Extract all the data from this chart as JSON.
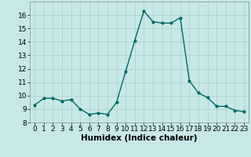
{
  "x": [
    0,
    1,
    2,
    3,
    4,
    5,
    6,
    7,
    8,
    9,
    10,
    11,
    12,
    13,
    14,
    15,
    16,
    17,
    18,
    19,
    20,
    21,
    22,
    23
  ],
  "y": [
    9.3,
    9.8,
    9.8,
    9.6,
    9.7,
    9.0,
    8.6,
    8.7,
    8.6,
    9.5,
    11.8,
    14.1,
    16.3,
    15.5,
    15.4,
    15.4,
    15.8,
    11.1,
    10.2,
    9.85,
    9.2,
    9.2,
    8.9,
    8.8
  ],
  "line_color": "#006868",
  "marker": "o",
  "marker_size": 2.0,
  "bg_color": "#c8e8e8",
  "grid_color": "#aacccc",
  "xlabel": "Humidex (Indice chaleur)",
  "xlabel_fontsize": 7.5,
  "ylim": [
    8,
    17
  ],
  "xlim": [
    -0.5,
    23.5
  ],
  "yticks": [
    8,
    9,
    10,
    11,
    12,
    13,
    14,
    15,
    16
  ],
  "xticks": [
    0,
    1,
    2,
    3,
    4,
    5,
    6,
    7,
    8,
    9,
    10,
    11,
    12,
    13,
    14,
    15,
    16,
    17,
    18,
    19,
    20,
    21,
    22,
    23
  ],
  "tick_fontsize": 6.5,
  "line_width": 1.0
}
